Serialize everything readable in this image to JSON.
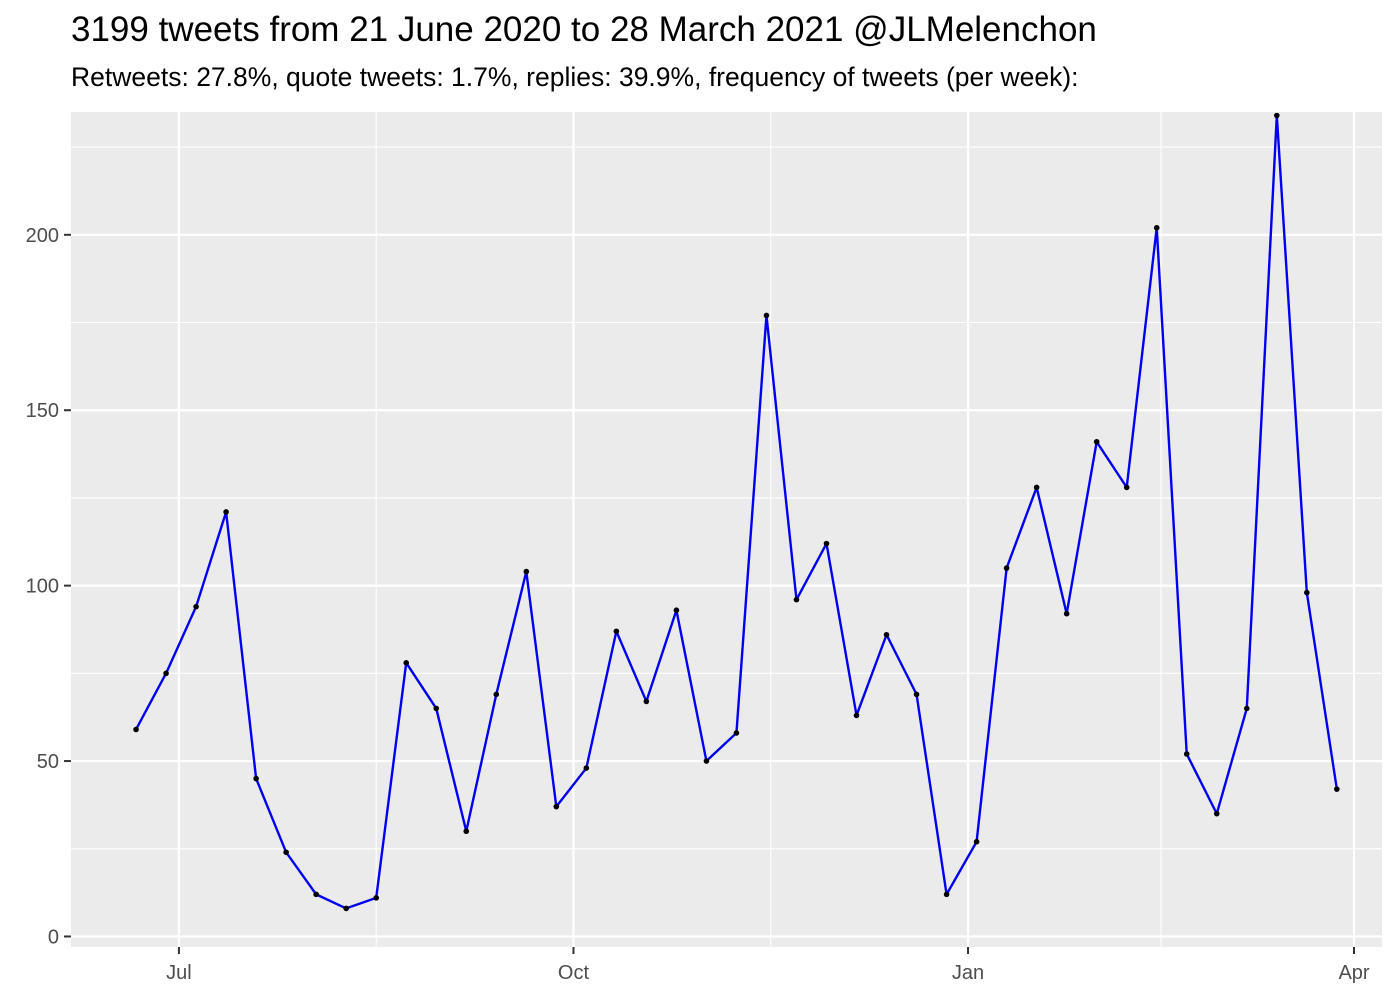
{
  "chart_data": {
    "type": "line",
    "title": "3199 tweets from 21 June 2020 to 28 March 2021 @JLMelenchon",
    "subtitle": "Retweets: 27.8%, quote tweets: 1.7%, replies: 39.9%, frequency of tweets (per week):",
    "xlabel": "",
    "ylabel": "",
    "x_axis": {
      "type": "date",
      "range": [
        "2020-06-07",
        "2021-04-01"
      ],
      "ticks": [
        {
          "date": "2020-07-01",
          "label": "Jul"
        },
        {
          "date": "2020-10-01",
          "label": "Oct"
        },
        {
          "date": "2021-01-01",
          "label": "Jan"
        },
        {
          "date": "2021-04-01",
          "label": "Apr"
        }
      ]
    },
    "y_axis": {
      "range": [
        -3,
        235
      ],
      "ticks": [
        0,
        50,
        100,
        150,
        200
      ]
    },
    "grid": true,
    "series": [
      {
        "color": "#0000ee",
        "point_color": "#000000",
        "x": [
          "2020-06-21",
          "2020-06-28",
          "2020-07-05",
          "2020-07-12",
          "2020-07-19",
          "2020-07-26",
          "2020-08-02",
          "2020-08-09",
          "2020-08-16",
          "2020-08-23",
          "2020-08-30",
          "2020-09-06",
          "2020-09-13",
          "2020-09-20",
          "2020-09-27",
          "2020-10-04",
          "2020-10-11",
          "2020-10-18",
          "2020-10-25",
          "2020-11-01",
          "2020-11-08",
          "2020-11-15",
          "2020-11-22",
          "2020-11-29",
          "2020-12-06",
          "2020-12-13",
          "2020-12-20",
          "2020-12-27",
          "2021-01-03",
          "2021-01-10",
          "2021-01-17",
          "2021-01-24",
          "2021-01-31",
          "2021-02-07",
          "2021-02-14",
          "2021-02-21",
          "2021-02-28",
          "2021-03-07",
          "2021-03-14",
          "2021-03-21",
          "2021-03-28"
        ],
        "values": [
          59,
          75,
          94,
          121,
          45,
          24,
          12,
          8,
          11,
          78,
          65,
          30,
          69,
          104,
          37,
          48,
          87,
          67,
          93,
          50,
          58,
          177,
          96,
          112,
          63,
          86,
          69,
          12,
          27,
          105,
          128,
          92,
          141,
          128,
          202,
          52,
          35,
          65,
          234,
          98,
          42
        ]
      }
    ]
  }
}
